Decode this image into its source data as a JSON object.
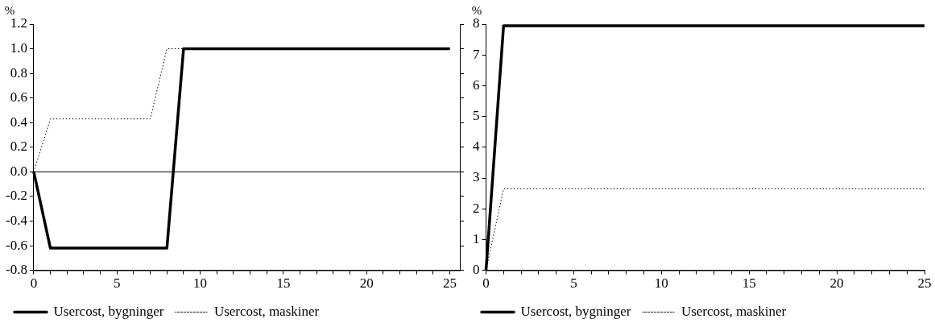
{
  "chart_data": [
    {
      "type": "line",
      "ylabel": "%",
      "xlim": [
        0,
        25.6
      ],
      "xticks": [
        0,
        {
          "value": 1,
          "label": null
        },
        {
          "value": 2,
          "label": null
        },
        {
          "value": 3,
          "label": null
        },
        {
          "value": 4,
          "label": null
        },
        5,
        {
          "value": 6,
          "label": null
        },
        {
          "value": 7,
          "label": null
        },
        {
          "value": 8,
          "label": null
        },
        {
          "value": 9,
          "label": null
        },
        10,
        {
          "value": 11,
          "label": null
        },
        {
          "value": 12,
          "label": null
        },
        {
          "value": 13,
          "label": null
        },
        {
          "value": 14,
          "label": null
        },
        15,
        {
          "value": 16,
          "label": null
        },
        {
          "value": 17,
          "label": null
        },
        {
          "value": 18,
          "label": null
        },
        {
          "value": 19,
          "label": null
        },
        20,
        {
          "value": 21,
          "label": null
        },
        {
          "value": 22,
          "label": null
        },
        {
          "value": 23,
          "label": null
        },
        {
          "value": 24,
          "label": null
        },
        25
      ],
      "ylim": [
        -0.8,
        1.2
      ],
      "yticks": [
        {
          "value": -0.8,
          "label": "-0.8"
        },
        {
          "value": -0.6,
          "label": "-0.6"
        },
        {
          "value": -0.4,
          "label": "-0.4"
        },
        {
          "value": -0.2,
          "label": "-0.2"
        },
        {
          "value": 0,
          "label": "0.0"
        },
        {
          "value": 0.2,
          "label": "0.2"
        },
        {
          "value": 0.4,
          "label": "0.4"
        },
        {
          "value": 0.6,
          "label": "0.6"
        },
        {
          "value": 0.8,
          "label": "0.8"
        },
        {
          "value": 1,
          "label": "1.0"
        },
        {
          "value": 1.2,
          "label": "1.2"
        }
      ],
      "grid": false,
      "legend": "bottom",
      "marker": "none",
      "ref_lines": [
        {
          "axis": "y",
          "value": 0,
          "color": "#000000"
        }
      ],
      "series": [
        {
          "name": "Usercost, bygninger",
          "color": "#000000",
          "line_style": "solid",
          "x": [
            0,
            1,
            8,
            9,
            25
          ],
          "values": [
            0,
            -0.62,
            -0.62,
            1.0,
            1.0
          ]
        },
        {
          "name": "Usercost, maskiner",
          "color": "#000000",
          "line_style": "dotted",
          "x": [
            0,
            1,
            7,
            8,
            25
          ],
          "values": [
            0,
            0.43,
            0.43,
            1.0,
            1.0
          ]
        }
      ]
    },
    {
      "type": "line",
      "ylabel": "%",
      "xlim": [
        0,
        25
      ],
      "xticks": [
        0,
        {
          "value": 1,
          "label": null
        },
        {
          "value": 2,
          "label": null
        },
        {
          "value": 3,
          "label": null
        },
        {
          "value": 4,
          "label": null
        },
        5,
        {
          "value": 6,
          "label": null
        },
        {
          "value": 7,
          "label": null
        },
        {
          "value": 8,
          "label": null
        },
        {
          "value": 9,
          "label": null
        },
        10,
        {
          "value": 11,
          "label": null
        },
        {
          "value": 12,
          "label": null
        },
        {
          "value": 13,
          "label": null
        },
        {
          "value": 14,
          "label": null
        },
        15,
        {
          "value": 16,
          "label": null
        },
        {
          "value": 17,
          "label": null
        },
        {
          "value": 18,
          "label": null
        },
        {
          "value": 19,
          "label": null
        },
        20,
        {
          "value": 21,
          "label": null
        },
        {
          "value": 22,
          "label": null
        },
        {
          "value": 23,
          "label": null
        },
        {
          "value": 24,
          "label": null
        },
        25
      ],
      "ylim": [
        0,
        8
      ],
      "yticks": [
        0,
        1,
        2,
        3,
        4,
        5,
        6,
        7,
        8
      ],
      "grid": false,
      "legend": "bottom",
      "marker": "none",
      "series": [
        {
          "name": "Usercost, bygninger",
          "color": "#000000",
          "line_style": "solid",
          "x": [
            0,
            1,
            25
          ],
          "values": [
            0,
            7.95,
            7.95
          ]
        },
        {
          "name": "Usercost, maskiner",
          "color": "#000000",
          "line_style": "dotted",
          "x": [
            0,
            1,
            25
          ],
          "values": [
            0,
            2.65,
            2.65
          ]
        }
      ]
    }
  ]
}
